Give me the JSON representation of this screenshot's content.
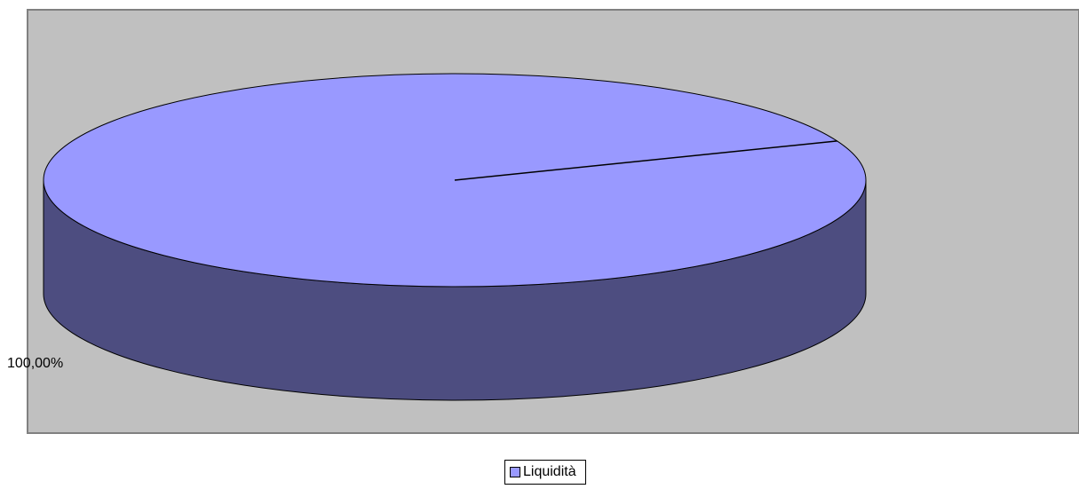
{
  "chart_data": {
    "type": "pie",
    "title": "",
    "categories": [
      "Liquidità"
    ],
    "values": [
      100
    ],
    "data_labels": [
      "100,00%"
    ],
    "legend": {
      "position": "bottom",
      "entries": [
        "Liquidità"
      ]
    },
    "three_d": true,
    "colors": {
      "slice_top": "#9999FF",
      "slice_side": "#4D4D80",
      "plot_area": "#C0C0C0",
      "plot_border": "#808080"
    }
  }
}
